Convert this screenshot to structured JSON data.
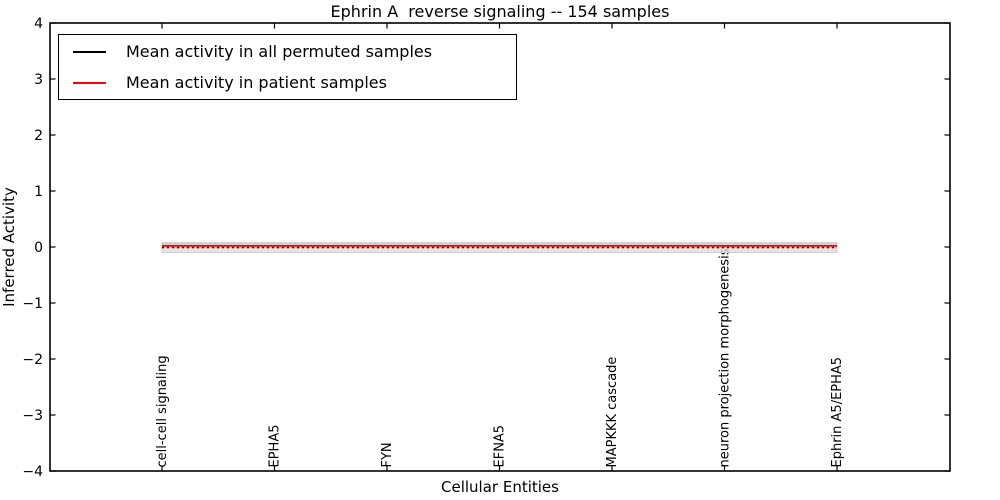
{
  "figure": {
    "background": "#ffffff",
    "frame_color": "#000000"
  },
  "chart_data": {
    "type": "line",
    "title": "Ephrin A  reverse signaling -- 154 samples",
    "xlabel": "Cellular Entities",
    "ylabel": "Inferred Activity",
    "ylim": [
      -4,
      4
    ],
    "ytick_values": [
      4,
      3,
      2,
      1,
      0,
      -1,
      -2,
      -3,
      -4
    ],
    "ytick_labels": [
      "4",
      "3",
      "2",
      "1",
      "0",
      "−1",
      "−2",
      "−3",
      "−4"
    ],
    "grid": false,
    "legend_position": "upper left",
    "categories": [
      "cell-cell signaling",
      "EPHA5",
      "FYN",
      "EFNA5",
      "MAPKKK cascade",
      "neuron projection morphogenesis",
      "Ephrin A5/EPHA5"
    ],
    "series": [
      {
        "name": "Mean activity in all permuted samples",
        "color": "#000000",
        "line_style": "dotted",
        "values": [
          -0.01,
          -0.01,
          -0.01,
          -0.01,
          -0.01,
          -0.01,
          -0.01
        ],
        "band": {
          "upper": [
            0.08,
            0.08,
            0.08,
            0.08,
            0.08,
            0.08,
            0.08
          ],
          "lower": [
            -0.1,
            -0.1,
            -0.1,
            -0.1,
            -0.1,
            -0.1,
            -0.1
          ],
          "fill": "#dcdcdc",
          "fill_opacity": 0.8,
          "edge": "#c8c8c8"
        }
      },
      {
        "name": "Mean activity in patient samples",
        "color": "#ff0000",
        "line_style": "solid",
        "values": [
          0.02,
          0.02,
          0.02,
          0.02,
          0.02,
          0.02,
          0.02
        ],
        "band": {
          "upper": [
            0.07,
            0.07,
            0.07,
            0.07,
            0.07,
            0.07,
            0.07
          ],
          "lower": [
            -0.02,
            -0.02,
            -0.02,
            -0.02,
            -0.02,
            -0.02,
            -0.02
          ],
          "fill": "#ff0000",
          "fill_opacity": 0.13,
          "edge": "none"
        }
      }
    ]
  }
}
